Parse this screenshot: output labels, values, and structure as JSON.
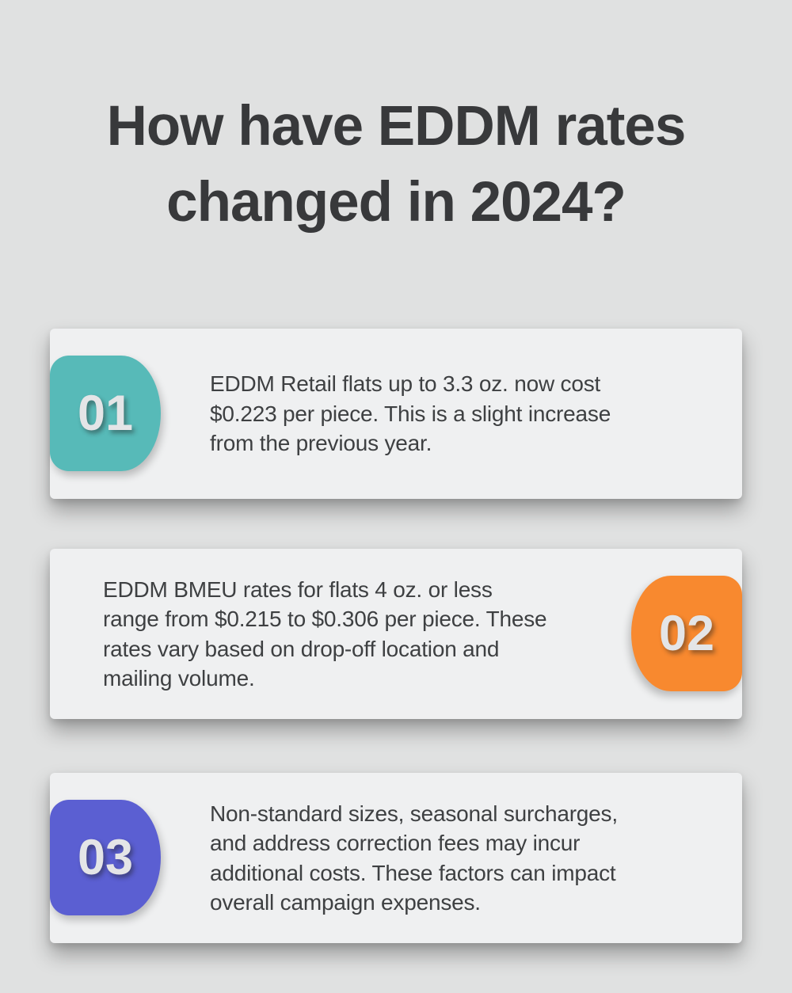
{
  "title": {
    "lines": [
      "How have EDDM rates",
      "changed in 2024?"
    ]
  },
  "cards": [
    {
      "number": "01",
      "badge_side": "left",
      "badge_color_name": "teal",
      "lines": [
        "EDDM Retail flats up to 3.3 oz. now cost",
        "$0.223 per piece. This is a slight increase",
        "from the previous year."
      ]
    },
    {
      "number": "02",
      "badge_side": "right",
      "badge_color_name": "orange",
      "lines": [
        "EDDM BMEU rates for flats 4 oz. or less",
        "range from $0.215 to $0.306 per piece. These",
        "rates vary based on drop-off location and",
        "mailing volume."
      ]
    },
    {
      "number": "03",
      "badge_side": "left",
      "badge_color_name": "purple",
      "lines": [
        "Non-standard sizes, seasonal surcharges,",
        "and address correction fees may incur",
        "additional costs. These factors can impact",
        "overall campaign expenses."
      ]
    }
  ],
  "colors": {
    "page_bg": "#e0e1e1",
    "card_bg": "#eff0f1",
    "title_color": "#38393b",
    "body_color": "#3e4042",
    "number_color": "#e4e5e7",
    "teal": "#57bab8",
    "orange": "#f8892f",
    "purple": "#5b5fd2"
  }
}
